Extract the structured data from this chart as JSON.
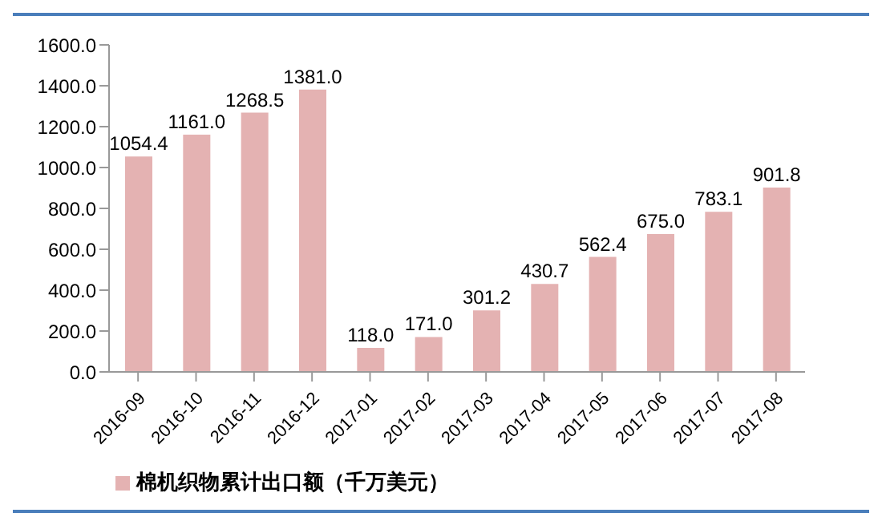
{
  "chart_data": {
    "type": "bar",
    "categories": [
      "2016-09",
      "2016-10",
      "2016-11",
      "2016-12",
      "2017-01",
      "2017-02",
      "2017-03",
      "2017-04",
      "2017-05",
      "2017-06",
      "2017-07",
      "2017-08"
    ],
    "series": [
      {
        "name": "棉机织物累计出口额（千万美元）",
        "color": "#e4b2b2",
        "values": [
          1054.4,
          1161.0,
          1268.5,
          1381.0,
          118.0,
          171.0,
          301.2,
          430.7,
          562.4,
          675.0,
          783.1,
          901.8
        ],
        "value_labels": [
          "1054.4",
          "1161.0",
          "1268.5",
          "1381.0",
          "118.0",
          "171.0",
          "301.2",
          "430.7",
          "562.4",
          "675.0",
          "783.1",
          "901.8"
        ]
      }
    ],
    "ylim": [
      0,
      1600
    ],
    "yticks": [
      {
        "value": 0,
        "label": "0.0"
      },
      {
        "value": 200,
        "label": "200.0"
      },
      {
        "value": 400,
        "label": "400.0"
      },
      {
        "value": 600,
        "label": "600.0"
      },
      {
        "value": 800,
        "label": "800.0"
      },
      {
        "value": 1000,
        "label": "1000.0"
      },
      {
        "value": 1200,
        "label": "1200.0"
      },
      {
        "value": 1400,
        "label": "1400.0"
      },
      {
        "value": 1600,
        "label": "1600.0"
      }
    ],
    "grid": false,
    "legend": "bottom left"
  }
}
